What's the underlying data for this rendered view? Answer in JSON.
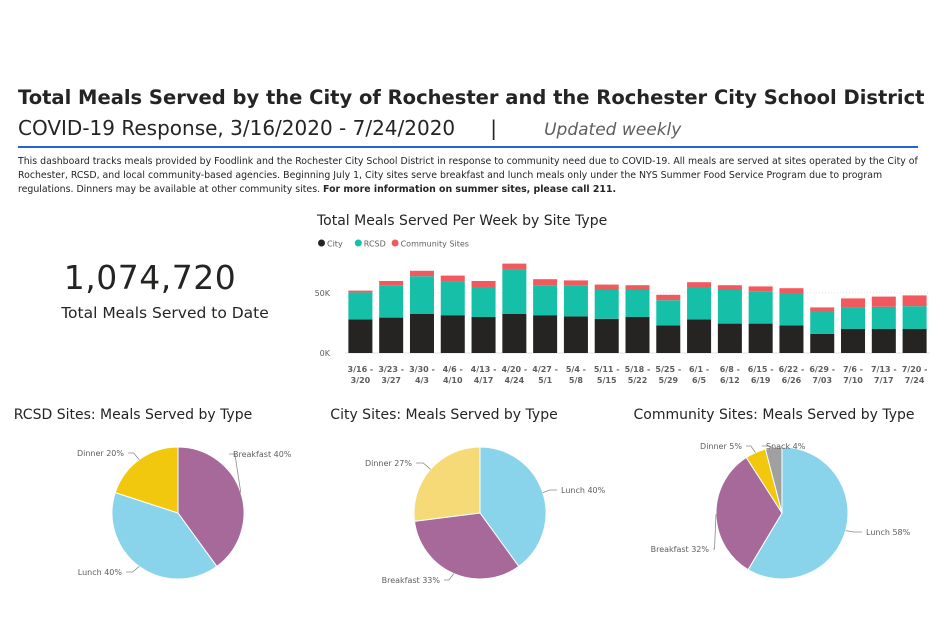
{
  "header": {
    "title": "Total Meals Served by the City of Rochester and the Rochester City School District",
    "subtitle_range": "COVID-19 Response, 3/16/2020 - 7/24/2020",
    "subtitle_separator": "|",
    "subtitle_update": "Updated weekly"
  },
  "description": {
    "text": "This dashboard tracks meals provided by Foodlink and the Rochester City School District in response to community need due to COVID-19. All meals are served at sites operated by the City of Rochester, RCSD, and local community-based agencies. Beginning July 1, City sites serve breakfast and lunch meals only under the NYS Summer Food Service Program due to program regulations. Dinners may be available at other community sites.",
    "bold_text": "For more information on summer sites, please call 211."
  },
  "kpi": {
    "value": "1,074,720",
    "label": "Total Meals Served to Date"
  },
  "colors": {
    "city": "#252423",
    "rcsd": "#16bfa8",
    "community": "#f0595e",
    "breakfast": "#a66999",
    "lunch": "#8ad4eb",
    "dinner_rcsd": "#f2c80f",
    "dinner_city": "#f5da77",
    "dinner_community": "#f2c80f",
    "snack": "#a0a0a0"
  },
  "chart_data": [
    {
      "type": "bar",
      "stacked": true,
      "title": "Total Meals Served Per Week by Site Type",
      "categories": [
        "3/16 - 3/20",
        "3/23 - 3/27",
        "3/30 - 4/3",
        "4/6 - 4/10",
        "4/13 - 4/17",
        "4/20 - 4/24",
        "4/27 - 5/1",
        "5/4 - 5/8",
        "5/11 - 5/15",
        "5/18 - 5/22",
        "5/25 - 5/29",
        "6/1 - 6/5",
        "6/8 - 6/12",
        "6/15 - 6/19",
        "6/22 - 6/26",
        "6/29 - 7/03",
        "7/6 - 7/10",
        "7/13 - 7/17",
        "7/20 - 7/24"
      ],
      "series": [
        {
          "name": "City",
          "values": [
            28000,
            29500,
            32500,
            31500,
            30000,
            32500,
            31500,
            30500,
            28500,
            30000,
            23000,
            28000,
            24500,
            24500,
            23000,
            16000,
            20000,
            20000,
            20000
          ]
        },
        {
          "name": "RCSD",
          "values": [
            22500,
            27000,
            31500,
            28000,
            25000,
            37000,
            25000,
            25500,
            24000,
            22500,
            21000,
            27000,
            28000,
            27000,
            27000,
            19000,
            18000,
            18500,
            19000
          ]
        },
        {
          "name": "Community Sites",
          "values": [
            1500,
            3500,
            4500,
            5000,
            5000,
            5000,
            5000,
            4500,
            4500,
            4000,
            4500,
            4000,
            4000,
            4000,
            4000,
            3000,
            7500,
            8500,
            9000
          ]
        }
      ],
      "yticks": [
        "0K",
        "50K"
      ],
      "ytick_values": [
        0,
        50000
      ],
      "ylim": [
        0,
        80000
      ],
      "legend_position": "top-left"
    },
    {
      "type": "pie",
      "title": "RCSD Sites: Meals Served by Type",
      "slices": [
        {
          "label": "Breakfast",
          "value": 40,
          "pct_label": "40%",
          "color": "#a66999"
        },
        {
          "label": "Lunch",
          "value": 40,
          "pct_label": "40%",
          "color": "#8ad4eb"
        },
        {
          "label": "Dinner",
          "value": 20,
          "pct_label": "20%",
          "color": "#f2c80f"
        }
      ]
    },
    {
      "type": "pie",
      "title": "City Sites: Meals Served by Type",
      "slices": [
        {
          "label": "Lunch",
          "value": 40,
          "pct_label": "40%",
          "color": "#8ad4eb"
        },
        {
          "label": "Breakfast",
          "value": 33,
          "pct_label": "33%",
          "color": "#a66999"
        },
        {
          "label": "Dinner",
          "value": 27,
          "pct_label": "27%",
          "color": "#f5da77"
        }
      ]
    },
    {
      "type": "pie",
      "title": "Community Sites: Meals Served by Type",
      "slices": [
        {
          "label": "Lunch",
          "value": 58,
          "pct_label": "58%",
          "color": "#8ad4eb"
        },
        {
          "label": "Breakfast",
          "value": 32,
          "pct_label": "32%",
          "color": "#a66999"
        },
        {
          "label": "Dinner",
          "value": 5,
          "pct_label": "5%",
          "color": "#f2c80f"
        },
        {
          "label": "Snack",
          "value": 4,
          "pct_label": "4%",
          "color": "#a0a0a0"
        }
      ]
    }
  ]
}
